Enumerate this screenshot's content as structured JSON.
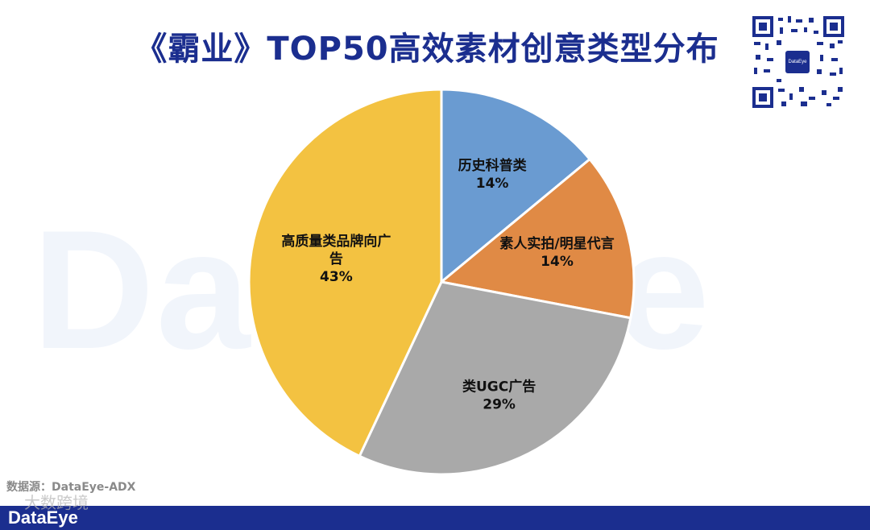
{
  "header": {
    "title": "《霸业》TOP50高效素材创意类型分布"
  },
  "watermark": {
    "text": "DataEye"
  },
  "qr_code": {
    "logo_text": "DataEye"
  },
  "source": {
    "text": "数据源：DataEye-ADX"
  },
  "footer": {
    "brand": "DataEye",
    "overlay_text": "大数跨境"
  },
  "colors": {
    "blue": "#6a9bd1",
    "orange": "#e08a45",
    "gray": "#a9a9a9",
    "yellow": "#f3c241",
    "title": "#1b2e8f"
  },
  "chart_data": {
    "type": "pie",
    "title": "《霸业》TOP50高效素材创意类型分布",
    "slices": [
      {
        "label": "历史科普类",
        "label_lines": [
          "历史科普类"
        ],
        "value": 14,
        "value_label": "14%",
        "color": "#6a9bd1"
      },
      {
        "label": "素人实拍/明星代言",
        "label_lines": [
          "素人实拍/明星代言"
        ],
        "value": 14,
        "value_label": "14%",
        "color": "#e08a45"
      },
      {
        "label": "类UGC广告",
        "label_lines": [
          "类UGC广告"
        ],
        "value": 29,
        "value_label": "29%",
        "color": "#a9a9a9"
      },
      {
        "label": "高质量类品牌向广告",
        "label_lines": [
          "高质量类品牌向广",
          "告"
        ],
        "value": 43,
        "value_label": "43%",
        "color": "#f3c241"
      }
    ],
    "start_angle": "12 o'clock",
    "direction": "clockwise",
    "legend": "none"
  }
}
